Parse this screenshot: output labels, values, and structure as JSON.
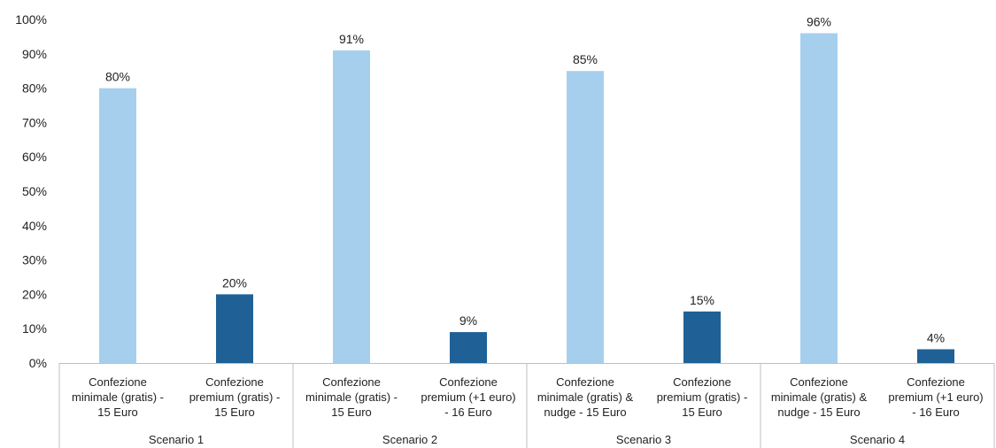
{
  "chart_data": {
    "type": "bar",
    "title": "",
    "xlabel": "",
    "ylabel": "",
    "ylim": [
      0,
      100
    ],
    "y_tick_values": [
      0,
      10,
      20,
      30,
      40,
      50,
      60,
      70,
      80,
      90,
      100
    ],
    "y_tick_labels": [
      "0%",
      "10%",
      "20%",
      "30%",
      "40%",
      "50%",
      "60%",
      "70%",
      "80%",
      "90%",
      "100%"
    ],
    "grid": false,
    "legend": "none",
    "colors": {
      "minimal": "#a6cfee",
      "premium": "#1f6196"
    },
    "groups": [
      {
        "name": "Scenario 1",
        "bars": [
          {
            "category": [
              "Confezione",
              "minimale (gratis) -",
              "15 Euro"
            ],
            "value": 80,
            "label": "80%",
            "kind": "minimal"
          },
          {
            "category": [
              "Confezione",
              "premium (gratis) -",
              "15 Euro"
            ],
            "value": 20,
            "label": "20%",
            "kind": "premium"
          }
        ]
      },
      {
        "name": "Scenario 2",
        "bars": [
          {
            "category": [
              "Confezione",
              "minimale (gratis) -",
              "15 Euro"
            ],
            "value": 91,
            "label": "91%",
            "kind": "minimal"
          },
          {
            "category": [
              "Confezione",
              "premium (+1 euro)",
              "- 16 Euro"
            ],
            "value": 9,
            "label": "9%",
            "kind": "premium"
          }
        ]
      },
      {
        "name": "Scenario 3",
        "bars": [
          {
            "category": [
              "Confezione",
              "minimale (gratis) &",
              "nudge - 15 Euro"
            ],
            "value": 85,
            "label": "85%",
            "kind": "minimal"
          },
          {
            "category": [
              "Confezione",
              "premium (gratis) -",
              "15 Euro"
            ],
            "value": 15,
            "label": "15%",
            "kind": "premium"
          }
        ]
      },
      {
        "name": "Scenario 4",
        "bars": [
          {
            "category": [
              "Confezione",
              "minimale (gratis) &",
              "nudge - 15 Euro"
            ],
            "value": 96,
            "label": "96%",
            "kind": "minimal"
          },
          {
            "category": [
              "Confezione",
              "premium (+1 euro)",
              "- 16 Euro"
            ],
            "value": 4,
            "label": "4%",
            "kind": "premium"
          }
        ]
      }
    ]
  }
}
